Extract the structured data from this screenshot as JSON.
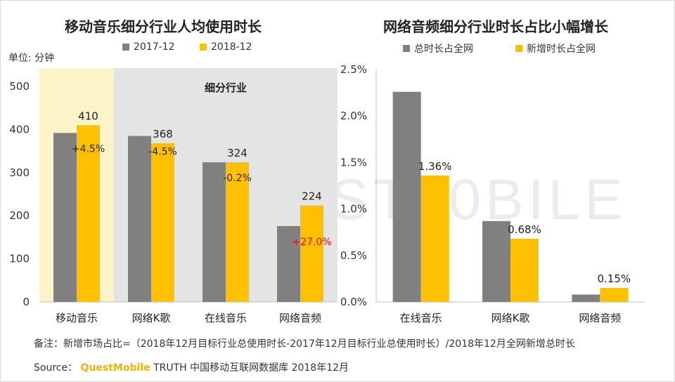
{
  "left_chart": {
    "title": "移动音乐细分行业人均使用时长",
    "unit": "单位: 分钟",
    "panel_label": "细分行业",
    "colors": {
      "s2017": "#808080",
      "s2018": "#ffc000",
      "highlight_bg": "#fdf3c8",
      "panel_bg": "#e4e4e4",
      "neg_change": "#222222",
      "pos_change": "#ff0000"
    }
  },
  "right_chart": {
    "title": "网络音频细分行业时长占比小幅增长",
    "colors": {
      "total": "#808080",
      "new": "#ffc000"
    }
  },
  "footer": {
    "note": "备注：新增市场占比=（2018年12月目标行业总使用时长-2017年12月目标行业总使用时长）/2018年12月全网新增总时长",
    "source_prefix": "Source：",
    "source_brand": "QuestMobile",
    "source_rest": " TRUTH 中国移动互联网数据库 2018年12月"
  },
  "watermark": "ST10BILE",
  "chart_data": [
    {
      "type": "bar",
      "title": "移动音乐细分行业人均使用时长",
      "ylabel": "单位: 分钟",
      "categories": [
        "移动音乐",
        "网络K歌",
        "在线音乐",
        "网络音频"
      ],
      "series": [
        {
          "name": "2017-12",
          "values": [
            392,
            385,
            324,
            176
          ],
          "color": "#808080"
        },
        {
          "name": "2018-12",
          "values": [
            410,
            368,
            324,
            224
          ],
          "color": "#ffc000"
        }
      ],
      "data_labels": [
        "410",
        "368",
        "324",
        "224"
      ],
      "change_labels": [
        "+4.5%",
        "-4.5%",
        "-0.2%",
        "+27.0%"
      ],
      "ylim": [
        0,
        500
      ],
      "yticks": [
        0,
        100,
        200,
        300,
        400,
        500
      ],
      "legend": "top"
    },
    {
      "type": "bar",
      "title": "网络音频细分行业时长占比小幅增长",
      "categories": [
        "在线音乐",
        "网络K歌",
        "网络音频"
      ],
      "series": [
        {
          "name": "总时长占全网",
          "values": [
            2.26,
            0.87,
            0.08
          ],
          "color": "#808080"
        },
        {
          "name": "新增时长占全网",
          "values": [
            1.36,
            0.68,
            0.15
          ],
          "color": "#ffc000"
        }
      ],
      "data_labels": [
        "1.36%",
        "0.68%",
        "0.15%"
      ],
      "ylim": [
        0,
        2.5
      ],
      "yticks": [
        "0.0%",
        "0.5%",
        "1.0%",
        "1.5%",
        "2.0%",
        "2.5%"
      ],
      "legend": "top"
    }
  ]
}
